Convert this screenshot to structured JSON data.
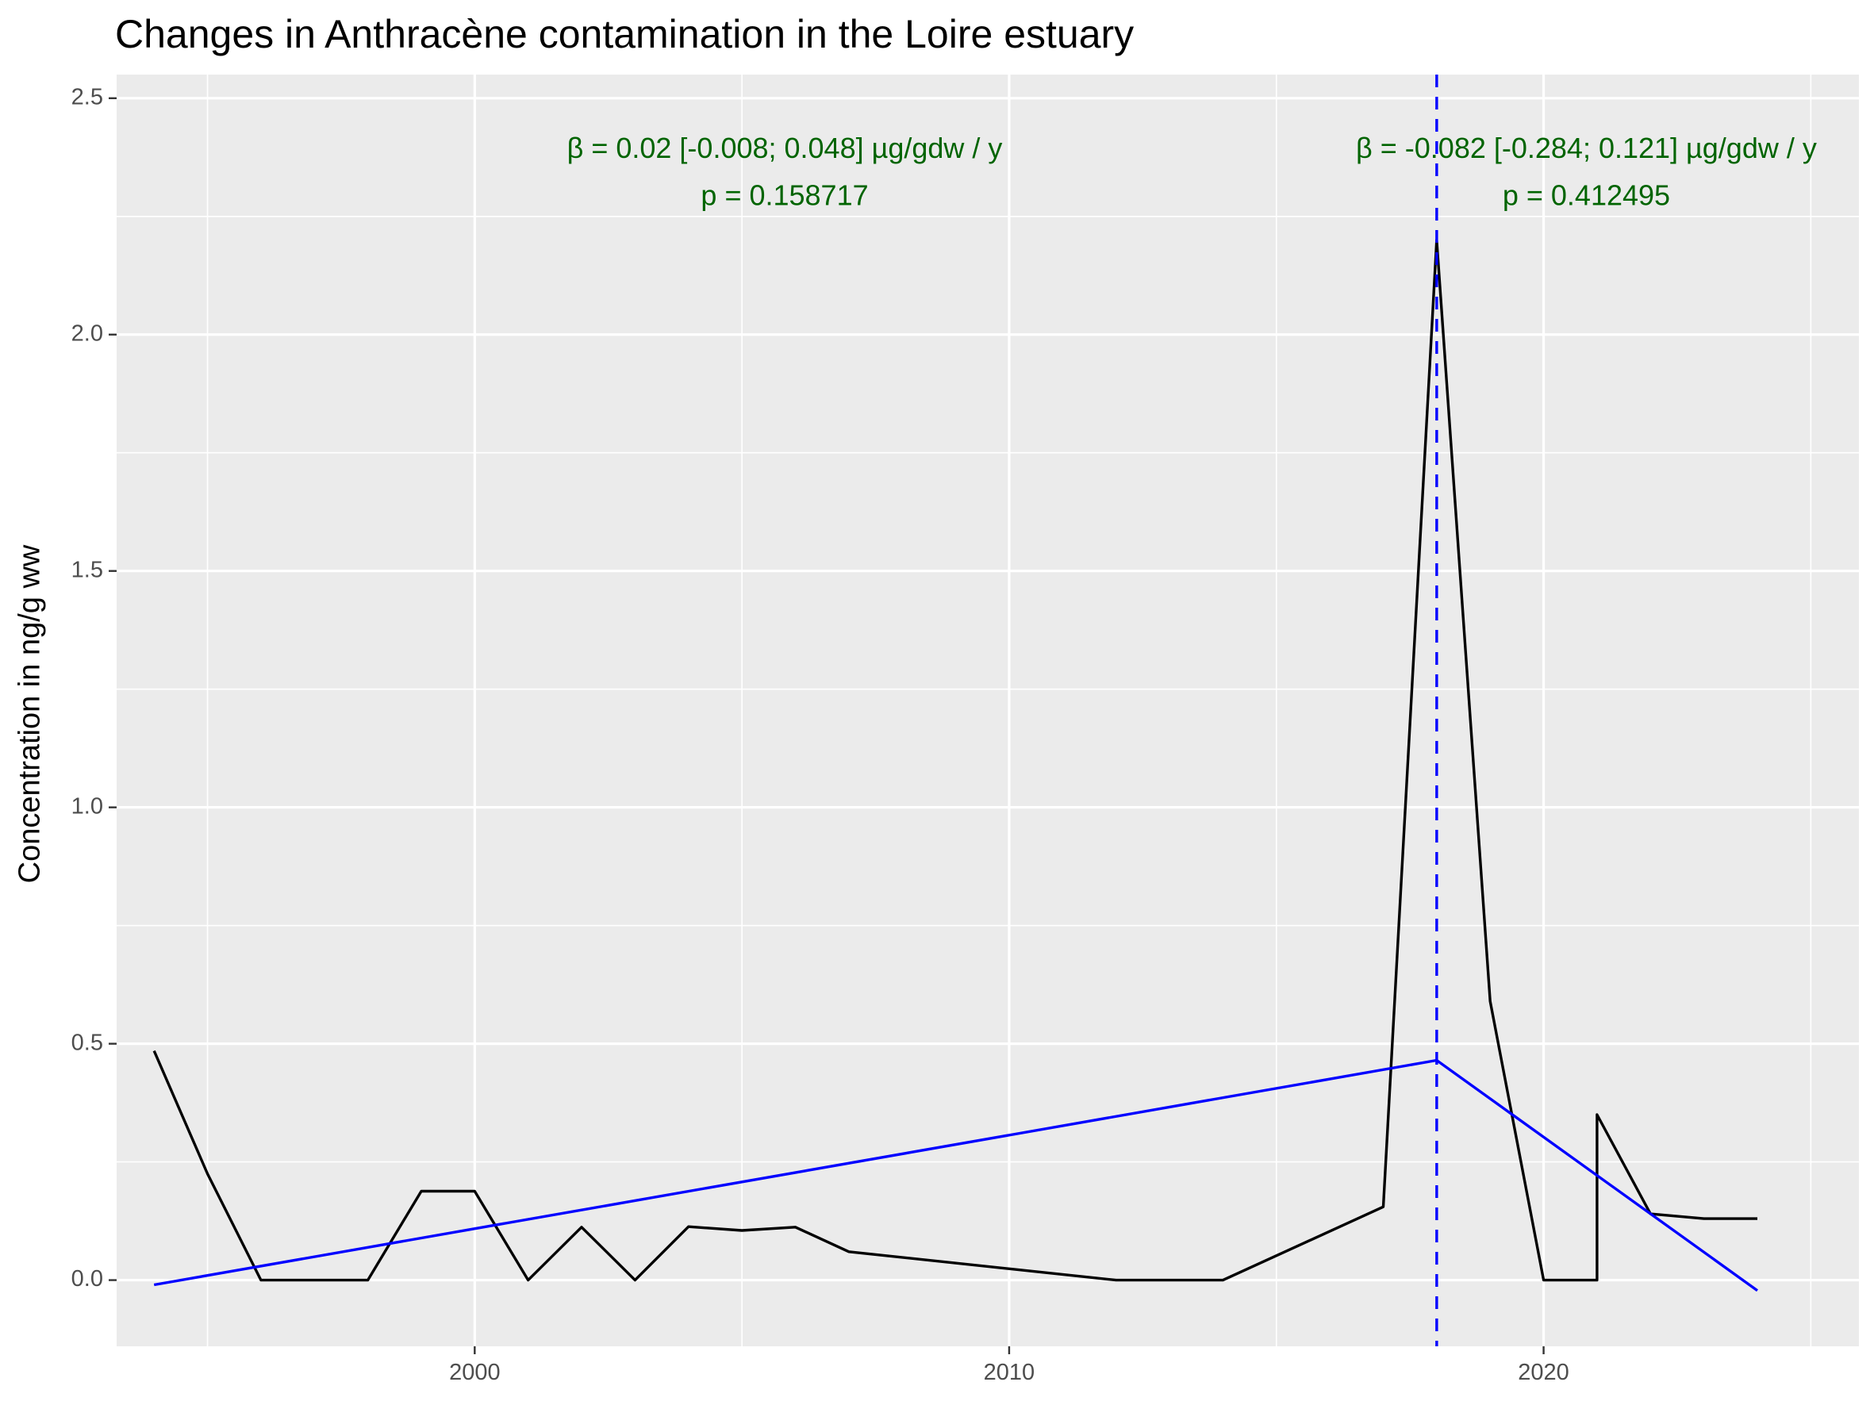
{
  "chart_data": {
    "type": "line",
    "title": "Changes in Anthracène contamination in the Loire estuary",
    "xlabel": "",
    "ylabel": "Concentration in ng/g ww",
    "xlim": [
      1993.3,
      2025.9
    ],
    "ylim": [
      -0.14,
      2.55
    ],
    "x_ticks": [
      2000,
      2010,
      2020
    ],
    "y_ticks": [
      0.0,
      0.5,
      1.0,
      1.5,
      2.0,
      2.5
    ],
    "y_tick_labels": [
      "0.0",
      "0.5",
      "1.0",
      "1.5",
      "2.0",
      "2.5"
    ],
    "grid": true,
    "series": [
      {
        "color": "#000000",
        "x": [
          1994,
          1995,
          1996,
          1997,
          1998,
          1999,
          2000,
          2001,
          2002,
          2003,
          2004,
          2005,
          2006,
          2007,
          2012,
          2014,
          2017,
          2018,
          2019,
          2020,
          2021,
          2021,
          2022,
          2023,
          2024
        ],
        "y": [
          0.485,
          0.225,
          0.0,
          0.0,
          0.0,
          0.188,
          0.188,
          0.0,
          0.112,
          0.0,
          0.113,
          0.105,
          0.112,
          0.06,
          0.0,
          0.0,
          0.155,
          2.2,
          0.59,
          0.0,
          0.0,
          0.35,
          0.14,
          0.13,
          0.13
        ]
      },
      {
        "color": "#0000ff",
        "x": [
          1994,
          2018,
          2024
        ],
        "y": [
          -0.01,
          0.465,
          -0.022
        ]
      }
    ],
    "vline": {
      "x": 2018,
      "color": "#0000ff",
      "style": "dashed"
    },
    "annotations": [
      {
        "x": 2005.8,
        "y": 2.39,
        "text": "β = 0.02 [-0.008; 0.048] µg/gdw / y",
        "color": "#006400"
      },
      {
        "x": 2005.8,
        "y": 2.29,
        "text": "p = 0.158717",
        "color": "#006400"
      },
      {
        "x": 2020.8,
        "y": 2.39,
        "text": "β = -0.082 [-0.284; 0.121] µg/gdw / y",
        "color": "#006400"
      },
      {
        "x": 2020.8,
        "y": 2.29,
        "text": "p = 0.412495",
        "color": "#006400"
      }
    ]
  }
}
